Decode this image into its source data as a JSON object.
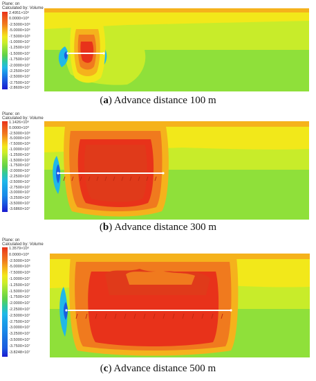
{
  "panels": [
    {
      "legend_title": "Plane: on",
      "legend_subtitle": "Calculated by: Volume",
      "legend_values": [
        "2.4951×10⁶",
        "0.0000×10⁰",
        "-2.5000×10⁶",
        "-5.0000×10⁶",
        "-7.5000×10⁶",
        "-1.0000×10⁷",
        "-1.2500×10⁷",
        "-1.5000×10⁷",
        "-1.7500×10⁷",
        "-2.0000×10⁷",
        "-2.2500×10⁷",
        "-2.5000×10⁷",
        "-2.7500×10⁷",
        "-2.8609×10⁷"
      ],
      "caption_letter": "a",
      "caption_text": "Advance distance 100 m"
    },
    {
      "legend_title": "Plane: on",
      "legend_subtitle": "Calculated by: Volume",
      "legend_values": [
        "1.1426×10⁶",
        "0.0000×10⁰",
        "-2.5000×10⁶",
        "-5.0000×10⁶",
        "-7.5000×10⁶",
        "-1.0000×10⁷",
        "-1.2500×10⁷",
        "-1.5000×10⁷",
        "-1.7500×10⁷",
        "-2.0000×10⁷",
        "-2.2500×10⁷",
        "-2.5000×10⁷",
        "-2.7500×10⁷",
        "-3.0000×10⁷",
        "-3.2500×10⁷",
        "-3.5000×10⁷",
        "-3.6860×10⁷"
      ],
      "caption_letter": "b",
      "caption_text": "Advance distance 300 m"
    },
    {
      "legend_title": "Plane: on",
      "legend_subtitle": "Calculated by: Volume",
      "legend_values": [
        "1.3579×10⁶",
        "0.0000×10⁰",
        "-2.5000×10⁶",
        "-5.0000×10⁶",
        "-7.5000×10⁶",
        "-1.0000×10⁷",
        "-1.2500×10⁷",
        "-1.5000×10⁷",
        "-1.7500×10⁷",
        "-2.0000×10⁷",
        "-2.2500×10⁷",
        "-2.5000×10⁷",
        "-2.7500×10⁷",
        "-3.0000×10⁷",
        "-3.2500×10⁷",
        "-3.5000×10⁷",
        "-3.7500×10⁷",
        "-3.8248×10⁷"
      ],
      "caption_letter": "c",
      "caption_text": "Advance distance 500 m"
    }
  ],
  "colors": {
    "red": "#e8321a",
    "orange": "#f07a1e",
    "yellow_orange": "#f5b21c",
    "yellow": "#f2e81a",
    "yellow_green": "#c8ec2a",
    "green": "#8fe03a",
    "green2": "#5fd24a",
    "teal": "#2fc8a0",
    "cyan": "#20b8e8",
    "blue": "#1a5ce0",
    "dark_blue": "#1a1ad0"
  }
}
